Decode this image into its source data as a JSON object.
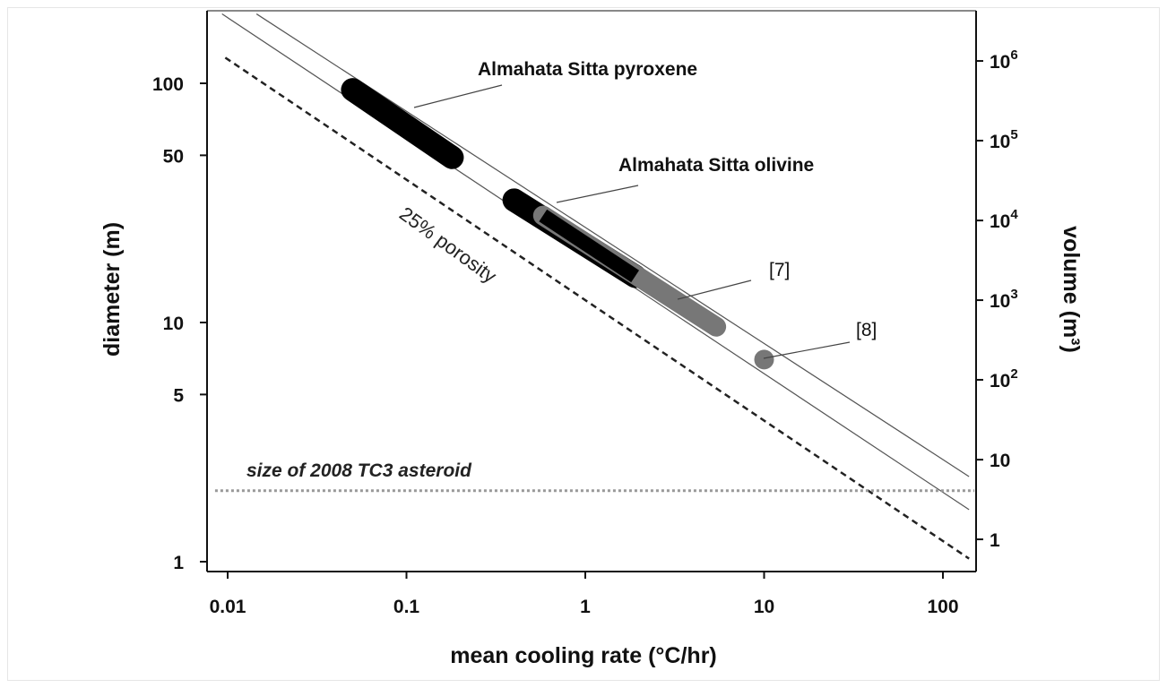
{
  "chart_data": {
    "type": "line",
    "xlabel": "mean cooling rate (°C/hr)",
    "ylabel": "diameter (m)",
    "y2label": "volume (m³)",
    "x_scale": "log",
    "y_scale": "log",
    "xlim": [
      0.0085,
      150
    ],
    "ylim": [
      0.9,
      195
    ],
    "x_ticks": [
      {
        "value": 0.01,
        "label": "0.01"
      },
      {
        "value": 0.1,
        "label": "0.1"
      },
      {
        "value": 1,
        "label": "1"
      },
      {
        "value": 10,
        "label": "10"
      },
      {
        "value": 100,
        "label": "100"
      }
    ],
    "y_ticks": [
      {
        "value": 1,
        "label": "1"
      },
      {
        "value": 5,
        "label": "5"
      },
      {
        "value": 10,
        "label": "10"
      },
      {
        "value": 50,
        "label": "50"
      },
      {
        "value": 100,
        "label": "100"
      }
    ],
    "y2_ticks": [
      {
        "value": 1.24,
        "base": "1",
        "exp": ""
      },
      {
        "value": 2.67,
        "base": "10",
        "exp": ""
      },
      {
        "value": 5.76,
        "base": "10",
        "exp": "2"
      },
      {
        "value": 12.4,
        "base": "10",
        "exp": "3"
      },
      {
        "value": 26.7,
        "base": "10",
        "exp": "4"
      },
      {
        "value": 57.6,
        "base": "10",
        "exp": "5"
      },
      {
        "value": 124,
        "base": "10",
        "exp": "6"
      }
    ],
    "lines": [
      {
        "id": "upper-line",
        "style": "solid",
        "color": "#555555",
        "points": [
          [
            0.0145,
            195
          ],
          [
            140,
            2.27
          ]
        ]
      },
      {
        "id": "lower-line",
        "style": "solid",
        "color": "#555555",
        "points": [
          [
            0.0093,
            195
          ],
          [
            140,
            1.65
          ]
        ]
      },
      {
        "id": "porosity-line",
        "style": "dashed",
        "color": "#222222",
        "points": [
          [
            0.0097,
            128
          ],
          [
            140,
            1.03
          ]
        ]
      },
      {
        "id": "tc3-size-line",
        "style": "dotted",
        "color": "#999999",
        "points": [
          [
            0.0085,
            1.98
          ],
          [
            150,
            1.98
          ]
        ]
      }
    ],
    "ranges": [
      {
        "id": "pyroxene-range",
        "color": "#000000",
        "points": [
          [
            0.05,
            94
          ],
          [
            0.18,
            49
          ]
        ]
      },
      {
        "id": "olivine-black-range",
        "color": "#000000",
        "points": [
          [
            0.4,
            32.5
          ],
          [
            1.9,
            15.6
          ]
        ]
      },
      {
        "id": "olivine-gray-range",
        "color": "#777777",
        "points": [
          [
            0.58,
            28
          ],
          [
            5.4,
            9.6
          ]
        ]
      }
    ],
    "markers": [
      {
        "id": "ref-8-point",
        "x": 10,
        "y": 7.0,
        "color": "#777777"
      }
    ],
    "annotations": {
      "pyroxene": "Almahata Sitta pyroxene",
      "olivine": "Almahata Sitta olivine",
      "ref7": "[7]",
      "ref8": "[8]",
      "porosity": "25% porosity",
      "tc3": "size of 2008 TC3 asteroid"
    }
  }
}
